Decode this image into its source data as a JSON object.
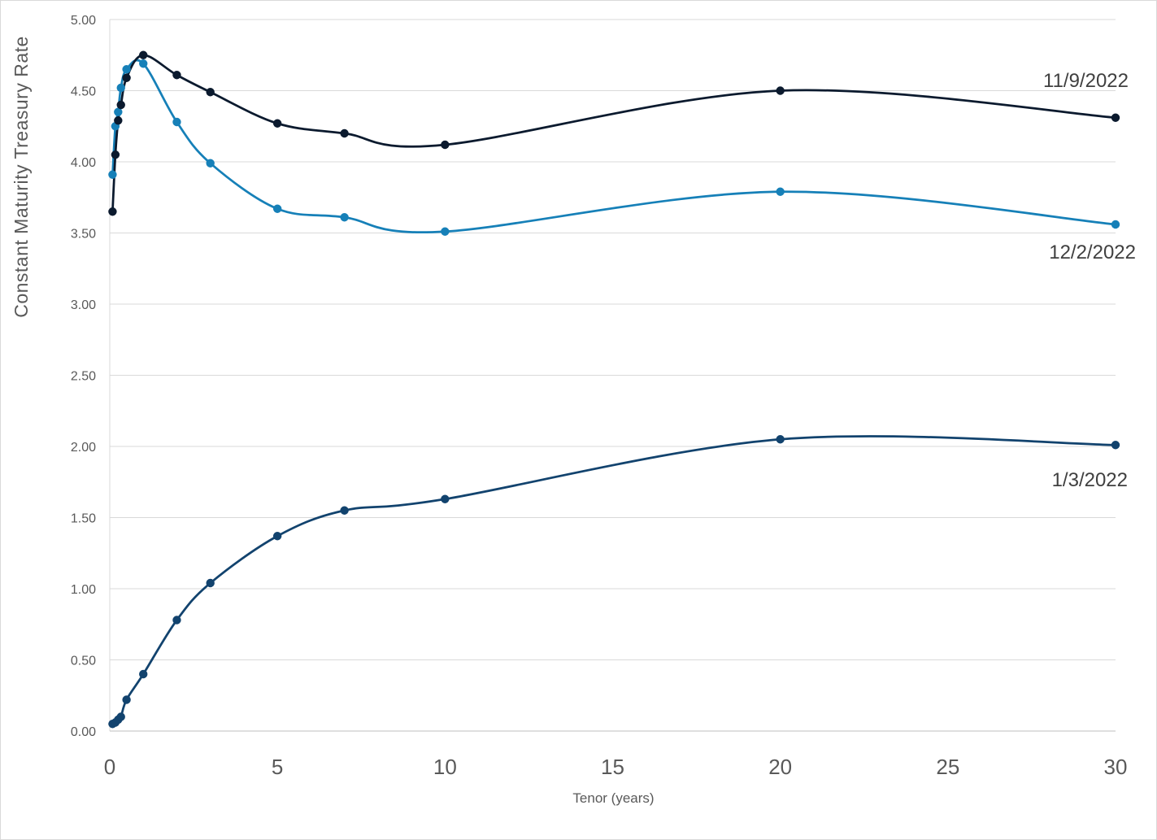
{
  "chart_data": {
    "type": "line",
    "title": "",
    "xlabel": "Tenor (years)",
    "ylabel": "Constant Maturity Treasury Rate",
    "xlim": [
      0,
      30
    ],
    "ylim": [
      0,
      5
    ],
    "x_ticks": [
      "0",
      "5",
      "10",
      "15",
      "20",
      "25",
      "30"
    ],
    "y_ticks": [
      "0.00",
      "0.50",
      "1.00",
      "1.50",
      "2.00",
      "2.50",
      "3.00",
      "3.50",
      "4.00",
      "4.50",
      "5.00"
    ],
    "grid": "horizontal",
    "legend": "none",
    "series": [
      {
        "name": "11/9/2022",
        "color": "#0b1a2e",
        "x": [
          0.083,
          0.167,
          0.25,
          0.333,
          0.5,
          1,
          2,
          3,
          5,
          7,
          10,
          20,
          30
        ],
        "y": [
          3.65,
          4.05,
          4.29,
          4.4,
          4.59,
          4.75,
          4.61,
          4.49,
          4.27,
          4.2,
          4.12,
          4.5,
          4.31
        ]
      },
      {
        "name": "12/2/2022",
        "color": "#1680b8",
        "x": [
          0.083,
          0.167,
          0.25,
          0.333,
          0.5,
          1,
          2,
          3,
          5,
          7,
          10,
          20,
          30
        ],
        "y": [
          3.91,
          4.25,
          4.35,
          4.52,
          4.65,
          4.69,
          4.28,
          3.99,
          3.67,
          3.61,
          3.51,
          3.79,
          3.56
        ]
      },
      {
        "name": "1/3/2022",
        "color": "#12436e",
        "x": [
          0.083,
          0.167,
          0.25,
          0.333,
          0.5,
          1,
          2,
          3,
          5,
          7,
          10,
          20,
          30
        ],
        "y": [
          0.05,
          0.06,
          0.08,
          0.1,
          0.22,
          0.4,
          0.78,
          1.04,
          1.37,
          1.55,
          1.63,
          2.05,
          2.01
        ]
      }
    ]
  }
}
